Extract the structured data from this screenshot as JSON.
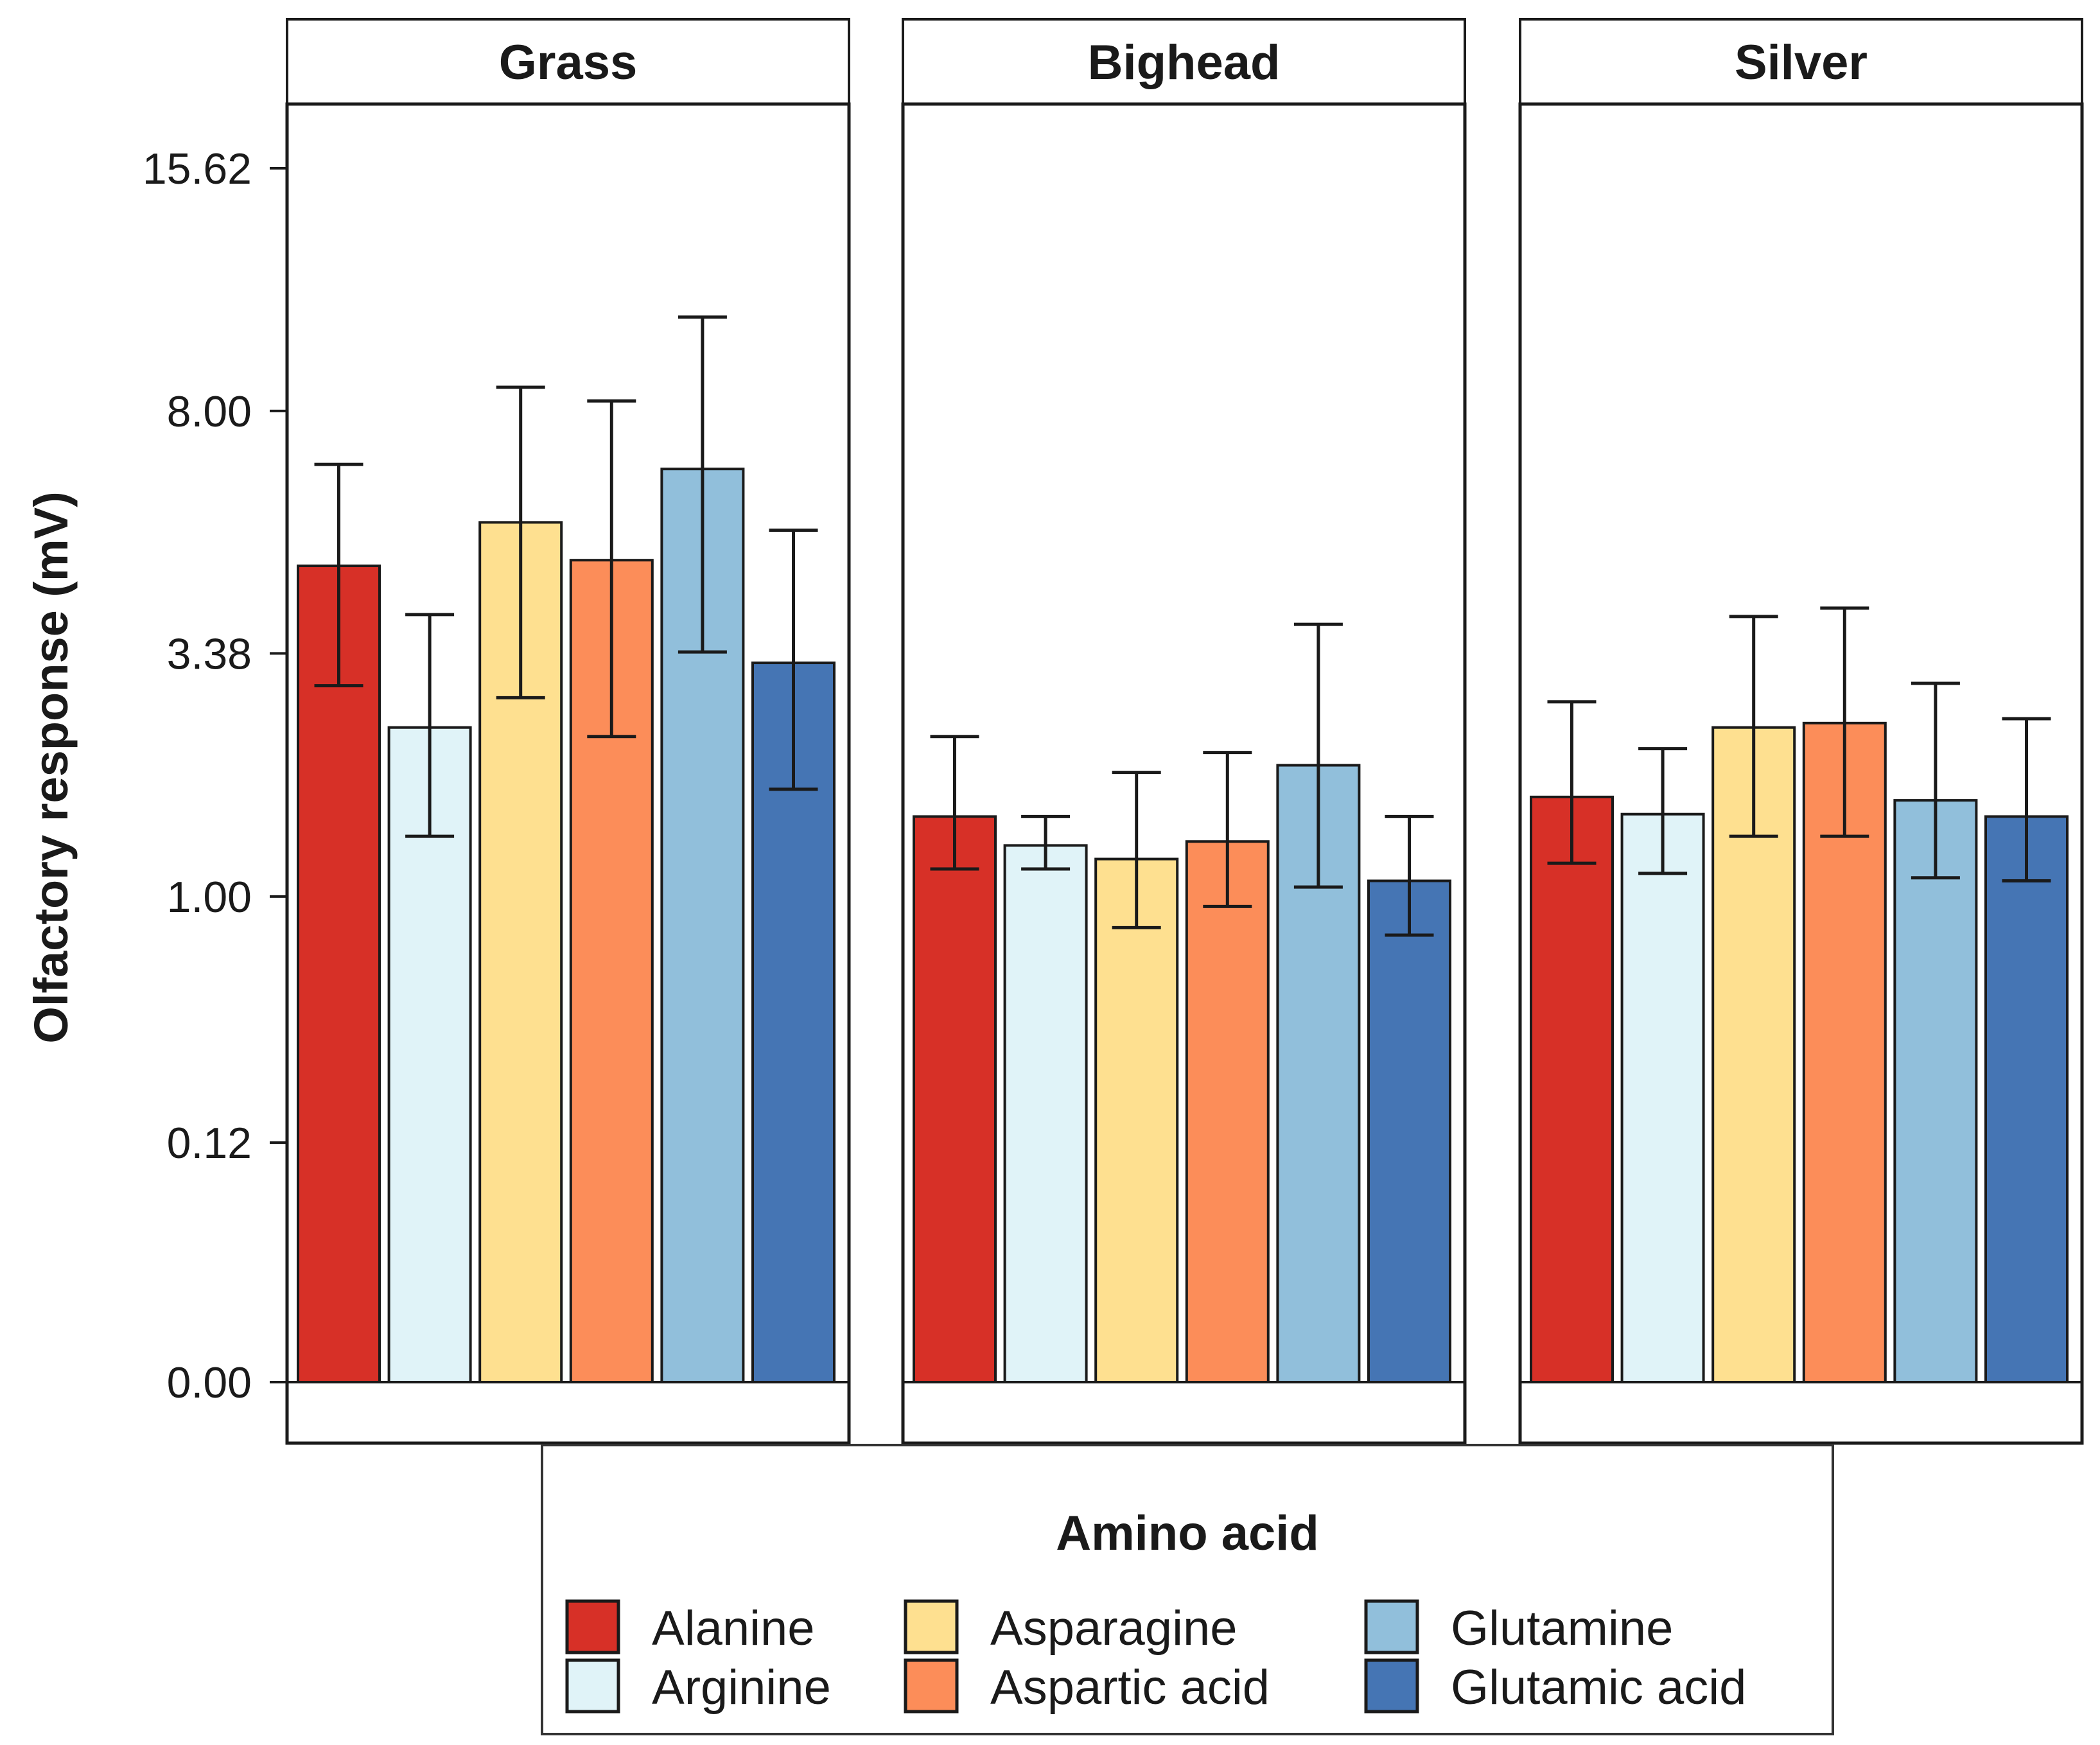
{
  "chart_data": {
    "type": "bar",
    "ylabel": "Olfactory response (mV)",
    "y_ticks": [
      "0.00",
      "0.12",
      "1.00",
      "3.38",
      "8.00",
      "15.62"
    ],
    "y_tick_values": [
      0,
      0.12,
      1,
      3.38,
      8,
      15.62
    ],
    "y_scale": "cube-root",
    "ylim": [
      0,
      15.62
    ],
    "facets": [
      "Grass",
      "Bighead",
      "Silver"
    ],
    "categories": [
      "Alanine",
      "Arginine",
      "Asparagine",
      "Aspartic acid",
      "Glutamine",
      "Glutamic acid"
    ],
    "series": [
      {
        "facet": "Grass",
        "values": [
          4.75,
          2.45,
          5.55,
          4.85,
          6.65,
          3.25
        ],
        "err_low": [
          2.95,
          1.42,
          2.8,
          2.35,
          3.4,
          1.82
        ],
        "err_high": [
          6.75,
          3.95,
          8.6,
          8.25,
          10.55,
          5.4
        ]
      },
      {
        "facet": "Bighead",
        "values": [
          1.58,
          1.35,
          1.25,
          1.38,
          2.05,
          1.1
        ],
        "err_low": [
          1.18,
          1.18,
          0.82,
          0.94,
          1.06,
          0.78
        ],
        "err_high": [
          2.35,
          1.58,
          1.98,
          2.18,
          3.8,
          1.58
        ]
      },
      {
        "facet": "Silver",
        "values": [
          1.75,
          1.6,
          2.45,
          2.5,
          1.72,
          1.58
        ],
        "err_low": [
          1.22,
          1.15,
          1.42,
          1.42,
          1.12,
          1.1
        ],
        "err_high": [
          2.75,
          2.22,
          3.92,
          4.05,
          2.98,
          2.55
        ]
      }
    ],
    "legend": {
      "title": "Amino acid",
      "placement": "bottom",
      "entries": [
        "Alanine",
        "Arginine",
        "Asparagine",
        "Aspartic acid",
        "Glutamine",
        "Glutamic acid"
      ]
    },
    "colors": [
      "#d73027",
      "#e0f3f8",
      "#fee090",
      "#fc8d59",
      "#91bfdb",
      "#4575b4"
    ]
  }
}
